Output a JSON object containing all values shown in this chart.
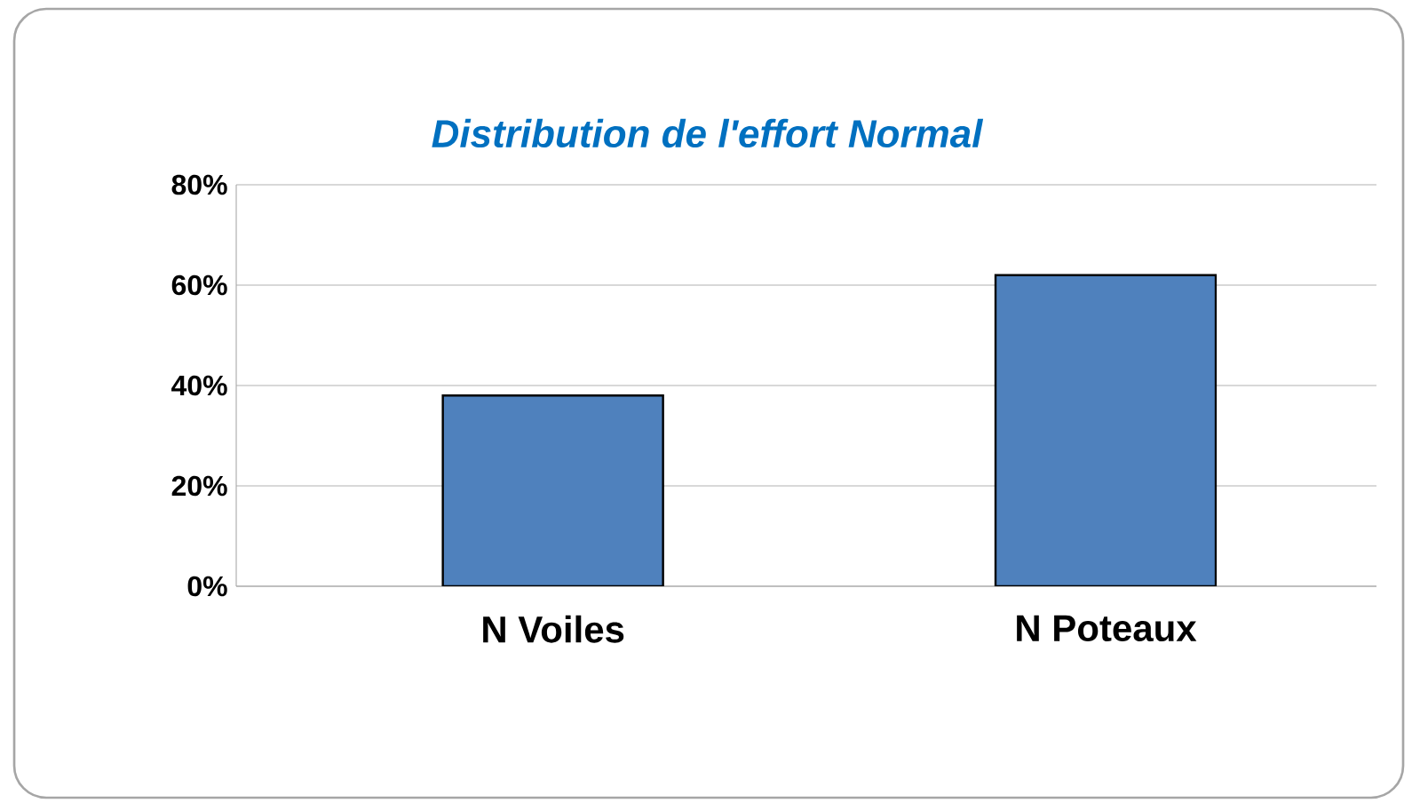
{
  "chart_data": {
    "type": "bar",
    "title": "Distribution de l'effort Normal",
    "categories": [
      "N Voiles",
      "N Poteaux"
    ],
    "values": [
      38,
      62
    ],
    "color": "#4f81bd",
    "ylim": [
      0,
      80
    ],
    "yticks": [
      {
        "value": 0,
        "label": "0%"
      },
      {
        "value": 20,
        "label": "20%"
      },
      {
        "value": 40,
        "label": "40%"
      },
      {
        "value": 60,
        "label": "60%"
      },
      {
        "value": 80,
        "label": "80%"
      }
    ],
    "grid": "y"
  }
}
